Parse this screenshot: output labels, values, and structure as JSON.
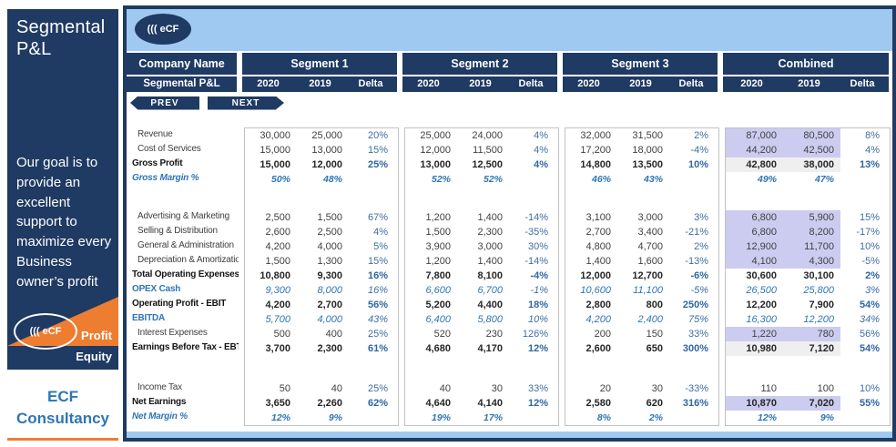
{
  "sidebar": {
    "title": "Segmental P&L",
    "mission": "Our goal is to provide an excellent support to maximize every Business owner’s profit",
    "logo_text": "((( eCF",
    "profit_label": "Profit",
    "equity_label": "Equity",
    "brand_line1": "ECF",
    "brand_line2": "Consultancy"
  },
  "header": {
    "logo_text": "((( eCF",
    "company_label": "Company Name",
    "table_label": "Segmental P&L",
    "groups": [
      "Segment 1",
      "Segment 2",
      "Segment 3",
      "Combined"
    ],
    "year_cols": [
      "2020",
      "2019",
      "Delta"
    ],
    "prev_label": "PREV",
    "next_label": "NEXT"
  },
  "colors": {
    "navy": "#1f3a63",
    "banner_blue": "#9fc9f0",
    "accent_orange": "#ed7d31",
    "brand_blue": "#2e75b6",
    "highlight_purple": "#ccccf0",
    "highlight_gray": "#efefef",
    "delta_blue": "#3d6ea5"
  },
  "table": {
    "rows": [
      {
        "label": "Revenue",
        "style": "n",
        "cbg": "p",
        "v": [
          "30,000",
          "25,000",
          "20%",
          "25,000",
          "24,000",
          "4%",
          "32,000",
          "31,500",
          "2%",
          "87,000",
          "80,500",
          "8%"
        ]
      },
      {
        "label": "Cost of Services",
        "style": "n",
        "cbg": "p",
        "v": [
          "15,000",
          "13,000",
          "15%",
          "12,000",
          "11,500",
          "4%",
          "17,200",
          "18,000",
          "-4%",
          "44,200",
          "42,500",
          "4%"
        ]
      },
      {
        "label": "Gross Profit",
        "style": "b",
        "cbg": "g",
        "v": [
          "15,000",
          "12,000",
          "25%",
          "13,000",
          "12,500",
          "4%",
          "14,800",
          "13,500",
          "10%",
          "42,800",
          "38,000",
          "13%"
        ]
      },
      {
        "label": "Gross Margin %",
        "style": "m",
        "cbg": null,
        "v": [
          "50%",
          "48%",
          "",
          "52%",
          "52%",
          "",
          "46%",
          "43%",
          "",
          "49%",
          "47%",
          ""
        ]
      },
      {
        "gap": 26
      },
      {
        "label": "Advertising & Marketing",
        "style": "n",
        "cbg": "p",
        "v": [
          "2,500",
          "1,500",
          "67%",
          "1,200",
          "1,400",
          "-14%",
          "3,100",
          "3,000",
          "3%",
          "6,800",
          "5,900",
          "15%"
        ]
      },
      {
        "label": "Selling & Distribution",
        "style": "n",
        "cbg": "p",
        "v": [
          "2,600",
          "2,500",
          "4%",
          "1,500",
          "2,300",
          "-35%",
          "2,700",
          "3,400",
          "-21%",
          "6,800",
          "8,200",
          "-17%"
        ]
      },
      {
        "label": "General & Administration",
        "style": "n",
        "cbg": "p",
        "v": [
          "4,200",
          "4,000",
          "5%",
          "3,900",
          "3,000",
          "30%",
          "4,800",
          "4,700",
          "2%",
          "12,900",
          "11,700",
          "10%"
        ]
      },
      {
        "label": "Depreciation & Amortization",
        "style": "n",
        "cbg": "p",
        "v": [
          "1,500",
          "1,300",
          "15%",
          "1,200",
          "1,400",
          "-14%",
          "1,400",
          "1,600",
          "-13%",
          "4,100",
          "4,300",
          "-5%"
        ]
      },
      {
        "label": "Total Operating Expenses",
        "style": "b",
        "cbg": null,
        "v": [
          "10,800",
          "9,300",
          "16%",
          "7,800",
          "8,100",
          "-4%",
          "12,000",
          "12,700",
          "-6%",
          "30,600",
          "30,100",
          "2%"
        ]
      },
      {
        "label": "OPEX Cash",
        "style": "i",
        "cbg": null,
        "v": [
          "9,300",
          "8,000",
          "16%",
          "6,600",
          "6,700",
          "-1%",
          "10,600",
          "11,100",
          "-5%",
          "26,500",
          "25,800",
          "3%"
        ]
      },
      {
        "label": "Operating Profit - EBIT",
        "style": "b",
        "cbg": null,
        "v": [
          "4,200",
          "2,700",
          "56%",
          "5,200",
          "4,400",
          "18%",
          "2,800",
          "800",
          "250%",
          "12,200",
          "7,900",
          "54%"
        ]
      },
      {
        "label": "EBITDA",
        "style": "i",
        "cbg": null,
        "v": [
          "5,700",
          "4,000",
          "43%",
          "6,400",
          "5,800",
          "10%",
          "4,200",
          "2,400",
          "75%",
          "16,300",
          "12,200",
          "34%"
        ]
      },
      {
        "label": "Interest Expenses",
        "style": "n",
        "cbg": "p",
        "v": [
          "500",
          "400",
          "25%",
          "520",
          "230",
          "126%",
          "200",
          "150",
          "33%",
          "1,220",
          "780",
          "56%"
        ]
      },
      {
        "label": "Earnings Before Tax - EBT",
        "style": "b",
        "cbg": "g",
        "v": [
          "3,700",
          "2,300",
          "61%",
          "4,680",
          "4,170",
          "12%",
          "2,600",
          "650",
          "300%",
          "10,980",
          "7,120",
          "54%"
        ]
      },
      {
        "gap": 28
      },
      {
        "label": "Income Tax",
        "style": "n",
        "cbg": null,
        "v": [
          "50",
          "40",
          "25%",
          "40",
          "30",
          "33%",
          "20",
          "30",
          "-33%",
          "110",
          "100",
          "10%"
        ]
      },
      {
        "label": "Net Earnings",
        "style": "b",
        "cbg": "p",
        "v": [
          "3,650",
          "2,260",
          "62%",
          "4,640",
          "4,140",
          "12%",
          "2,580",
          "620",
          "316%",
          "10,870",
          "7,020",
          "55%"
        ]
      },
      {
        "label": "Net Margin %",
        "style": "m",
        "cbg": null,
        "v": [
          "12%",
          "9%",
          "",
          "19%",
          "17%",
          "",
          "8%",
          "2%",
          "",
          "12%",
          "9%",
          ""
        ]
      }
    ]
  }
}
